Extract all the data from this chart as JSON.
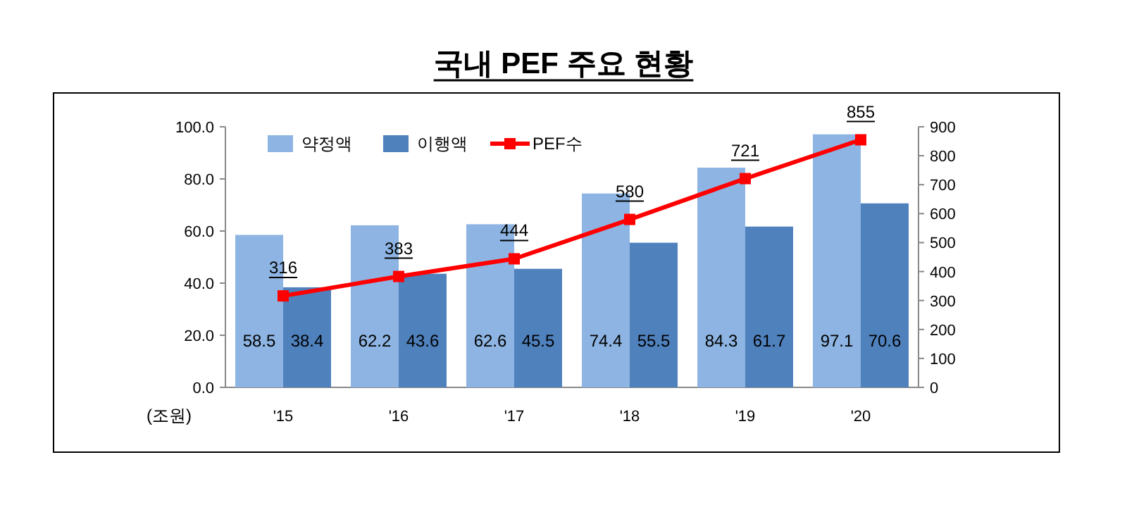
{
  "chart_data": {
    "type": "bar",
    "title": "국내 PEF 주요 현황",
    "ylabel": "(조원)",
    "categories": [
      "'15",
      "'16",
      "'17",
      "'18",
      "'19",
      "'20"
    ],
    "series": [
      {
        "name": "약정액",
        "color": "#8db4e2",
        "values": [
          58.5,
          62.2,
          62.6,
          74.4,
          84.3,
          97.1
        ]
      },
      {
        "name": "이행액",
        "color": "#4f81bd",
        "values": [
          38.4,
          43.6,
          45.5,
          55.5,
          61.7,
          70.6
        ]
      },
      {
        "name": "PEF수",
        "type": "line",
        "axis": "y2",
        "color": "#ff0000",
        "values": [
          316,
          383,
          444,
          580,
          721,
          855
        ]
      }
    ],
    "ylim": [
      0,
      100
    ],
    "yticks": [
      {
        "value": 0,
        "label": "0.0"
      },
      {
        "value": 20,
        "label": "20.0"
      },
      {
        "value": 40,
        "label": "40.0"
      },
      {
        "value": 60,
        "label": "60.0"
      },
      {
        "value": 80,
        "label": "80.0"
      },
      {
        "value": 100,
        "label": "100.0"
      }
    ],
    "y2lim": [
      0,
      900
    ],
    "y2ticks": [
      0,
      100,
      200,
      300,
      400,
      500,
      600,
      700,
      800,
      900
    ],
    "data_labels": true,
    "legend": "top left",
    "grid": false,
    "marker": "square",
    "line_style": "solid"
  }
}
